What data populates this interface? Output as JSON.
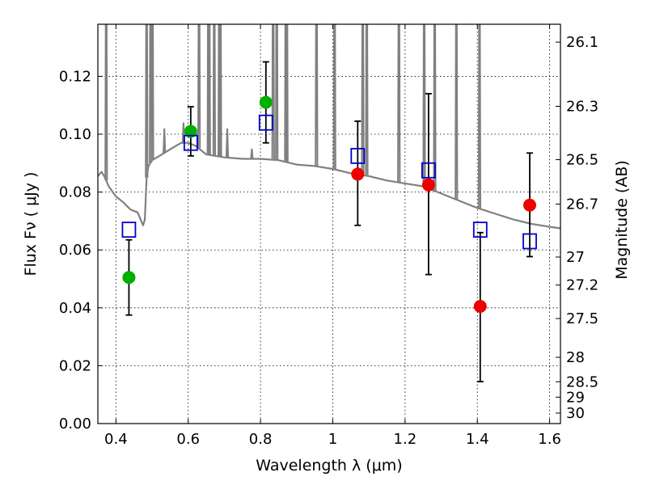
{
  "chart_data": {
    "type": "scatter",
    "xlabel": "Wavelength  λ (μm)",
    "ylabel": "Flux  Fν  ( μJy )",
    "y2label": "Magnitude (AB)",
    "xlim": [
      0.35,
      1.63
    ],
    "ylim": [
      0.0,
      0.138
    ],
    "grid": true,
    "x_ticks": [
      0.4,
      0.6,
      0.8,
      1.0,
      1.2,
      1.4,
      1.6
    ],
    "x_tick_labels": [
      "0.4",
      "0.6",
      "0.8",
      "1",
      "1.2",
      "1.4",
      "1.6"
    ],
    "y_ticks": [
      0.0,
      0.02,
      0.04,
      0.06,
      0.08,
      0.1,
      0.12
    ],
    "y_tick_labels": [
      "0.00",
      "0.02",
      "0.04",
      "0.06",
      "0.08",
      "0.10",
      "0.12"
    ],
    "y2_ticks": [
      26.1,
      26.3,
      26.5,
      26.7,
      27,
      27.2,
      27.5,
      28,
      28.5,
      29,
      30
    ],
    "y2_tick_labels": [
      "26.1",
      "26.3",
      "26.5",
      "26.7",
      "27",
      "27.2",
      "27.5",
      "28",
      "28.5",
      "29",
      "30"
    ],
    "colors": {
      "model_line": "#808080",
      "model_box": "#0000cc",
      "detection_green": "#00b000",
      "detection_red": "#ee0000",
      "error_bar": "#000000"
    },
    "series": [
      {
        "kind": "line",
        "points": [
          [
            0.35,
            0.0855
          ],
          [
            0.36,
            0.087
          ],
          [
            0.37,
            0.085
          ],
          [
            0.38,
            0.082
          ],
          [
            0.4,
            0.0785
          ],
          [
            0.42,
            0.0765
          ],
          [
            0.44,
            0.074
          ],
          [
            0.46,
            0.073
          ],
          [
            0.47,
            0.07
          ],
          [
            0.475,
            0.0685
          ],
          [
            0.48,
            0.0705
          ],
          [
            0.485,
            0.085
          ],
          [
            0.49,
            0.089
          ],
          [
            0.5,
            0.091
          ],
          [
            0.52,
            0.0925
          ],
          [
            0.54,
            0.094
          ],
          [
            0.56,
            0.0955
          ],
          [
            0.58,
            0.097
          ],
          [
            0.6,
            0.097
          ],
          [
            0.62,
            0.096
          ],
          [
            0.65,
            0.093
          ],
          [
            0.7,
            0.092
          ],
          [
            0.75,
            0.0915
          ],
          [
            0.8,
            0.0915
          ],
          [
            0.85,
            0.091
          ],
          [
            0.9,
            0.0895
          ],
          [
            0.95,
            0.089
          ],
          [
            1.0,
            0.088
          ],
          [
            1.05,
            0.0865
          ],
          [
            1.1,
            0.0855
          ],
          [
            1.15,
            0.084
          ],
          [
            1.2,
            0.083
          ],
          [
            1.25,
            0.082
          ],
          [
            1.3,
            0.0795
          ],
          [
            1.35,
            0.077
          ],
          [
            1.4,
            0.0745
          ],
          [
            1.45,
            0.0725
          ],
          [
            1.5,
            0.0705
          ],
          [
            1.55,
            0.069
          ],
          [
            1.6,
            0.068
          ],
          [
            1.63,
            0.0675
          ]
        ],
        "emission_lines": [
          [
            0.373,
            0.2
          ],
          [
            0.485,
            0.2
          ],
          [
            0.496,
            0.2
          ],
          [
            0.501,
            0.2
          ],
          [
            0.534,
            0.102
          ],
          [
            0.587,
            0.104
          ],
          [
            0.63,
            0.2
          ],
          [
            0.656,
            0.2
          ],
          [
            0.658,
            0.2
          ],
          [
            0.672,
            0.2
          ],
          [
            0.686,
            0.2
          ],
          [
            0.689,
            0.2
          ],
          [
            0.708,
            0.102
          ],
          [
            0.776,
            0.095
          ],
          [
            0.835,
            0.2
          ],
          [
            0.845,
            0.2
          ],
          [
            0.87,
            0.2
          ],
          [
            0.873,
            0.2
          ],
          [
            0.955,
            0.2
          ],
          [
            1.005,
            0.2
          ],
          [
            1.083,
            0.2
          ],
          [
            1.094,
            0.2
          ],
          [
            1.183,
            0.2
          ],
          [
            1.253,
            0.2
          ],
          [
            1.282,
            0.2
          ],
          [
            1.342,
            0.2
          ],
          [
            1.406,
            0.2
          ]
        ]
      },
      {
        "kind": "model_boxes",
        "points": [
          [
            0.436,
            0.067
          ],
          [
            0.607,
            0.097
          ],
          [
            0.815,
            0.104
          ],
          [
            1.069,
            0.0925
          ],
          [
            1.265,
            0.0875
          ],
          [
            1.408,
            0.067
          ],
          [
            1.545,
            0.063
          ]
        ]
      },
      {
        "kind": "detections",
        "points": [
          {
            "x": 0.436,
            "y": 0.0505,
            "err_low": 0.0375,
            "err_high": 0.0635,
            "color": "green"
          },
          {
            "x": 0.607,
            "y": 0.101,
            "err_low": 0.0925,
            "err_high": 0.1095,
            "color": "green"
          },
          {
            "x": 0.815,
            "y": 0.111,
            "err_low": 0.097,
            "err_high": 0.125,
            "color": "green"
          },
          {
            "x": 1.069,
            "y": 0.0862,
            "err_low": 0.0685,
            "err_high": 0.1045,
            "color": "red"
          },
          {
            "x": 1.265,
            "y": 0.0825,
            "err_low": 0.0515,
            "err_high": 0.114,
            "color": "red"
          },
          {
            "x": 1.408,
            "y": 0.0405,
            "err_low": 0.0145,
            "err_high": 0.066,
            "color": "red"
          },
          {
            "x": 1.545,
            "y": 0.0755,
            "err_low": 0.0577,
            "err_high": 0.0935,
            "color": "red"
          }
        ]
      }
    ]
  }
}
